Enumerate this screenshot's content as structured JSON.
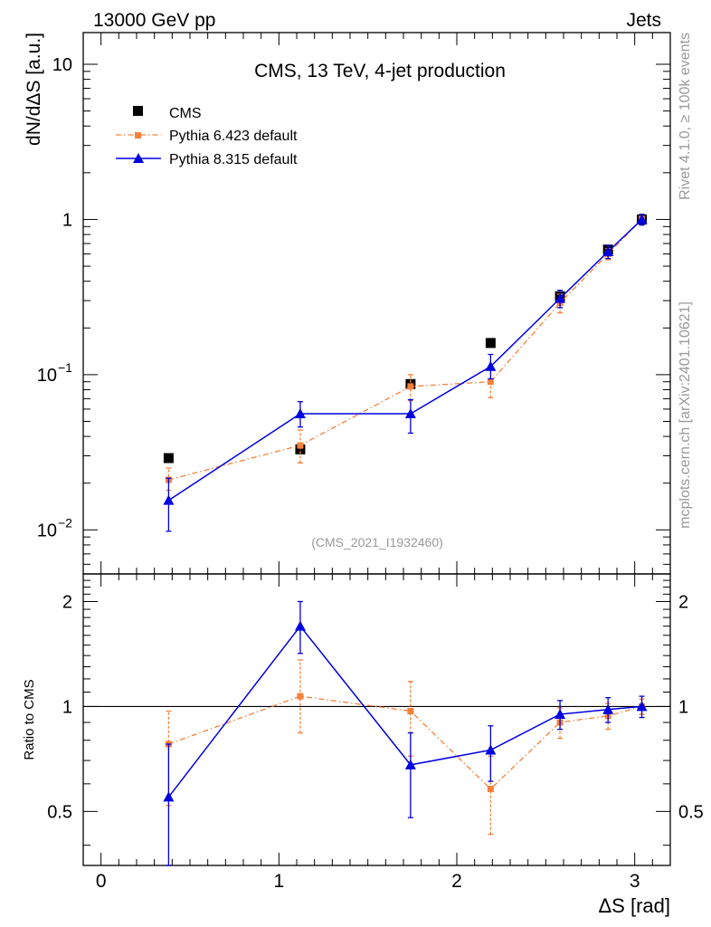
{
  "header": {
    "left": "13000 GeV pp",
    "right": "Jets"
  },
  "side_labels": {
    "top": "Rivet 4.1.0, ≥ 100k events",
    "bottom": "mcplots.cern.ch [arXiv:2401.10621]"
  },
  "colors": {
    "cms": "#000000",
    "pythia6": "#f5813a",
    "pythia8": "#0000e0",
    "watermark": "#999999"
  },
  "chart_data": [
    {
      "type": "scatter",
      "panel": "main",
      "title": "CMS, 13 TeV, 4-jet production",
      "watermark": "(CMS_2021_I1932460)",
      "xlabel": "ΔS [rad]",
      "ylabel": "dN/dΔS [a.u.]",
      "yscale": "log",
      "xlim": [
        -0.1,
        3.2
      ],
      "ylim": [
        0.0052,
        16
      ],
      "x_ticks": [
        "0",
        "1",
        "2",
        "3"
      ],
      "y_ticks": [
        {
          "value": 0.01,
          "base": "10",
          "exp": "−2"
        },
        {
          "value": 0.1,
          "base": "10",
          "exp": "−1"
        },
        {
          "value": 1,
          "label": "1"
        },
        {
          "value": 10,
          "label": "10"
        }
      ],
      "legend_position": "top-left",
      "series": [
        {
          "name": "CMS",
          "style": "markers",
          "marker": "square",
          "x": [
            0.38,
            1.12,
            1.74,
            2.19,
            2.58,
            2.85,
            3.04
          ],
          "y": [
            0.029,
            0.033,
            0.087,
            0.16,
            0.32,
            0.64,
            1.0
          ]
        },
        {
          "name": "Pythia 6.423 default",
          "style": "dashdot",
          "marker": "square",
          "x": [
            0.38,
            1.12,
            1.74,
            2.19,
            2.58,
            2.85,
            3.04
          ],
          "y": [
            0.021,
            0.035,
            0.084,
            0.09,
            0.29,
            0.6,
            1.0
          ],
          "err_low": [
            0.018,
            0.027,
            0.068,
            0.071,
            0.25,
            0.55,
            0.95
          ],
          "err_high": [
            0.025,
            0.044,
            0.1,
            0.11,
            0.33,
            0.65,
            1.05
          ]
        },
        {
          "name": "Pythia 8.315 default",
          "style": "solid",
          "marker": "triangle",
          "x": [
            0.38,
            1.12,
            1.74,
            2.19,
            2.58,
            2.85,
            3.04
          ],
          "y": [
            0.0155,
            0.056,
            0.056,
            0.113,
            0.31,
            0.62,
            1.0
          ],
          "err_low": [
            0.0098,
            0.046,
            0.042,
            0.094,
            0.27,
            0.56,
            0.92
          ],
          "err_high": [
            0.0215,
            0.067,
            0.069,
            0.135,
            0.35,
            0.68,
            1.08
          ]
        }
      ]
    },
    {
      "type": "scatter",
      "panel": "ratio",
      "ylabel": "Ratio to CMS",
      "xlabel": "ΔS [rad]",
      "yscale": "log",
      "xlim": [
        -0.1,
        3.2
      ],
      "ylim": [
        0.35,
        2.4
      ],
      "y_ticks": [
        {
          "value": 0.5,
          "label": "0.5"
        },
        {
          "value": 1,
          "label": "1"
        },
        {
          "value": 2,
          "label": "2"
        }
      ],
      "reference_line": 1,
      "series": [
        {
          "name": "Pythia 6.423 default",
          "style": "dashdot",
          "marker": "square",
          "x": [
            0.38,
            1.12,
            1.74,
            2.19,
            2.58,
            2.85,
            3.04
          ],
          "y": [
            0.78,
            1.07,
            0.97,
            0.58,
            0.9,
            0.94,
            1.0
          ],
          "err_low": [
            0.52,
            0.84,
            0.72,
            0.43,
            0.81,
            0.86,
            0.95
          ],
          "err_high": [
            0.97,
            1.36,
            1.18,
            0.72,
            0.99,
            1.02,
            1.05
          ]
        },
        {
          "name": "Pythia 8.315 default",
          "style": "solid",
          "marker": "triangle",
          "x": [
            0.38,
            1.12,
            1.74,
            2.19,
            2.58,
            2.85,
            3.04
          ],
          "y": [
            0.55,
            1.7,
            0.68,
            0.75,
            0.95,
            0.98,
            1.0
          ],
          "err_low": [
            0.3,
            1.42,
            0.48,
            0.61,
            0.86,
            0.9,
            0.93
          ],
          "err_high": [
            0.78,
            2.0,
            0.84,
            0.88,
            1.04,
            1.06,
            1.07
          ]
        }
      ]
    }
  ]
}
